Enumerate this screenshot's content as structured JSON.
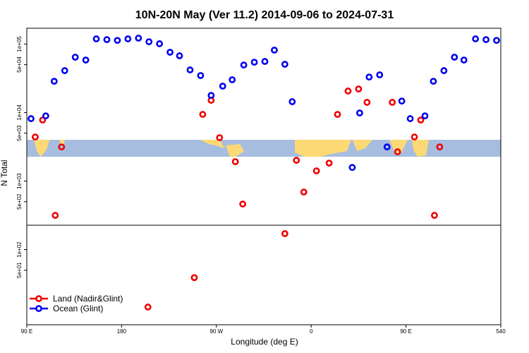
{
  "chart_data": {
    "type": "scatter",
    "title": "10N-20N May (Ver 11.2)   2014-09-06 to 2024-07-31",
    "x_label": "Longitude (deg E)",
    "y_label": "N Total",
    "log_y": true,
    "xlim": [
      90,
      540
    ],
    "xticks": [
      {
        "value": 90,
        "label": "90 E"
      },
      180,
      {
        "value": 270,
        "label": "90 W"
      },
      {
        "value": 360,
        "label": "0"
      },
      {
        "value": 450,
        "label": "90 E"
      },
      540
    ],
    "ylim": [
      8,
      170000
    ],
    "yticks": [
      {
        "value": 50,
        "label": "5e+01"
      },
      {
        "value": 100,
        "label": "1e+02"
      },
      {
        "value": 500,
        "label": "5e+02"
      },
      {
        "value": 1000,
        "label": "1e+03"
      },
      {
        "value": 5000,
        "label": "5e+03"
      },
      {
        "value": 10000,
        "label": "1e+04"
      },
      {
        "value": 50000,
        "label": "5e+04"
      },
      {
        "value": 100000,
        "label": "1e+05"
      }
    ],
    "legend": "bottom-left",
    "series": [
      {
        "name": "Land (Nadir&Glint)",
        "color": "#ee0000",
        "x": [
          98,
          105,
          117,
          123,
          205,
          249,
          257,
          265,
          273,
          288,
          295,
          335,
          346,
          353,
          365,
          377,
          385,
          395,
          405,
          413,
          437,
          442,
          458,
          464,
          477,
          482
        ],
        "values": [
          4400,
          7780,
          316,
          3150,
          14.5,
          39,
          9400,
          15100,
          4300,
          1920,
          462,
          171,
          2010,
          692,
          1410,
          1830,
          9400,
          20600,
          22100,
          14100,
          14100,
          2670,
          4400,
          7780,
          316,
          3150
        ]
      },
      {
        "name": "Ocean (Glint)",
        "color": "#0000ee",
        "x": [
          94,
          108,
          116,
          126,
          136,
          146,
          156,
          166,
          176,
          186,
          196,
          206,
          216,
          226,
          235,
          245,
          255,
          265,
          276,
          285,
          296,
          306,
          316,
          325,
          335,
          342,
          399,
          406,
          415,
          425,
          432,
          446,
          454,
          468,
          476,
          486,
          496,
          505,
          516,
          526,
          536
        ],
        "values": [
          8150,
          8950,
          28600,
          40900,
          64300,
          58400,
          119000,
          116000,
          113000,
          119000,
          122000,
          108000,
          101000,
          75900,
          67300,
          41900,
          34700,
          17800,
          24300,
          30100,
          49400,
          54300,
          55700,
          81500,
          50700,
          14400,
          1580,
          9860,
          33000,
          35500,
          3150,
          14700,
          8150,
          8950,
          28600,
          40900,
          64300,
          58400,
          119000,
          116000,
          113000
        ]
      }
    ]
  }
}
